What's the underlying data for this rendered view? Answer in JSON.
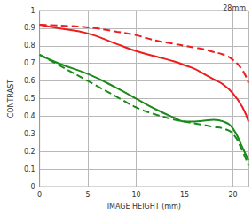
{
  "chart_data": {
    "type": "line",
    "title": "28mm",
    "x_label": "IMAGE HEIGHT (mm)",
    "y_label": "CONTRAST",
    "x": [
      0,
      2,
      5,
      8,
      10,
      12,
      14,
      15,
      16,
      17,
      18,
      19,
      20,
      21,
      21.6
    ],
    "series": [
      {
        "color": "#ee1c1c",
        "line_style": "solid",
        "values": [
          0.92,
          0.9,
          0.87,
          0.81,
          0.77,
          0.74,
          0.71,
          0.69,
          0.67,
          0.64,
          0.61,
          0.58,
          0.53,
          0.45,
          0.37
        ]
      },
      {
        "color": "#ee1c1c",
        "line_style": "dashed",
        "values": [
          0.92,
          0.915,
          0.905,
          0.88,
          0.86,
          0.83,
          0.81,
          0.8,
          0.79,
          0.78,
          0.765,
          0.75,
          0.72,
          0.66,
          0.59
        ]
      },
      {
        "color": "#1a8a1a",
        "line_style": "solid",
        "values": [
          0.75,
          0.7,
          0.64,
          0.56,
          0.5,
          0.44,
          0.39,
          0.37,
          0.37,
          0.375,
          0.38,
          0.37,
          0.33,
          0.22,
          0.15
        ]
      },
      {
        "color": "#1a8a1a",
        "line_style": "dashed",
        "values": [
          0.75,
          0.69,
          0.6,
          0.51,
          0.45,
          0.41,
          0.38,
          0.37,
          0.36,
          0.35,
          0.34,
          0.33,
          0.3,
          0.2,
          0.12
        ]
      }
    ],
    "xlim": [
      0,
      21.6
    ],
    "ylim": [
      0,
      1
    ],
    "xticks": [
      0,
      5,
      10,
      15,
      20
    ],
    "yticks": [
      0,
      0.1,
      0.2,
      0.3,
      0.4,
      0.5,
      0.6,
      0.7,
      0.8,
      0.9,
      1
    ],
    "grid": true
  }
}
